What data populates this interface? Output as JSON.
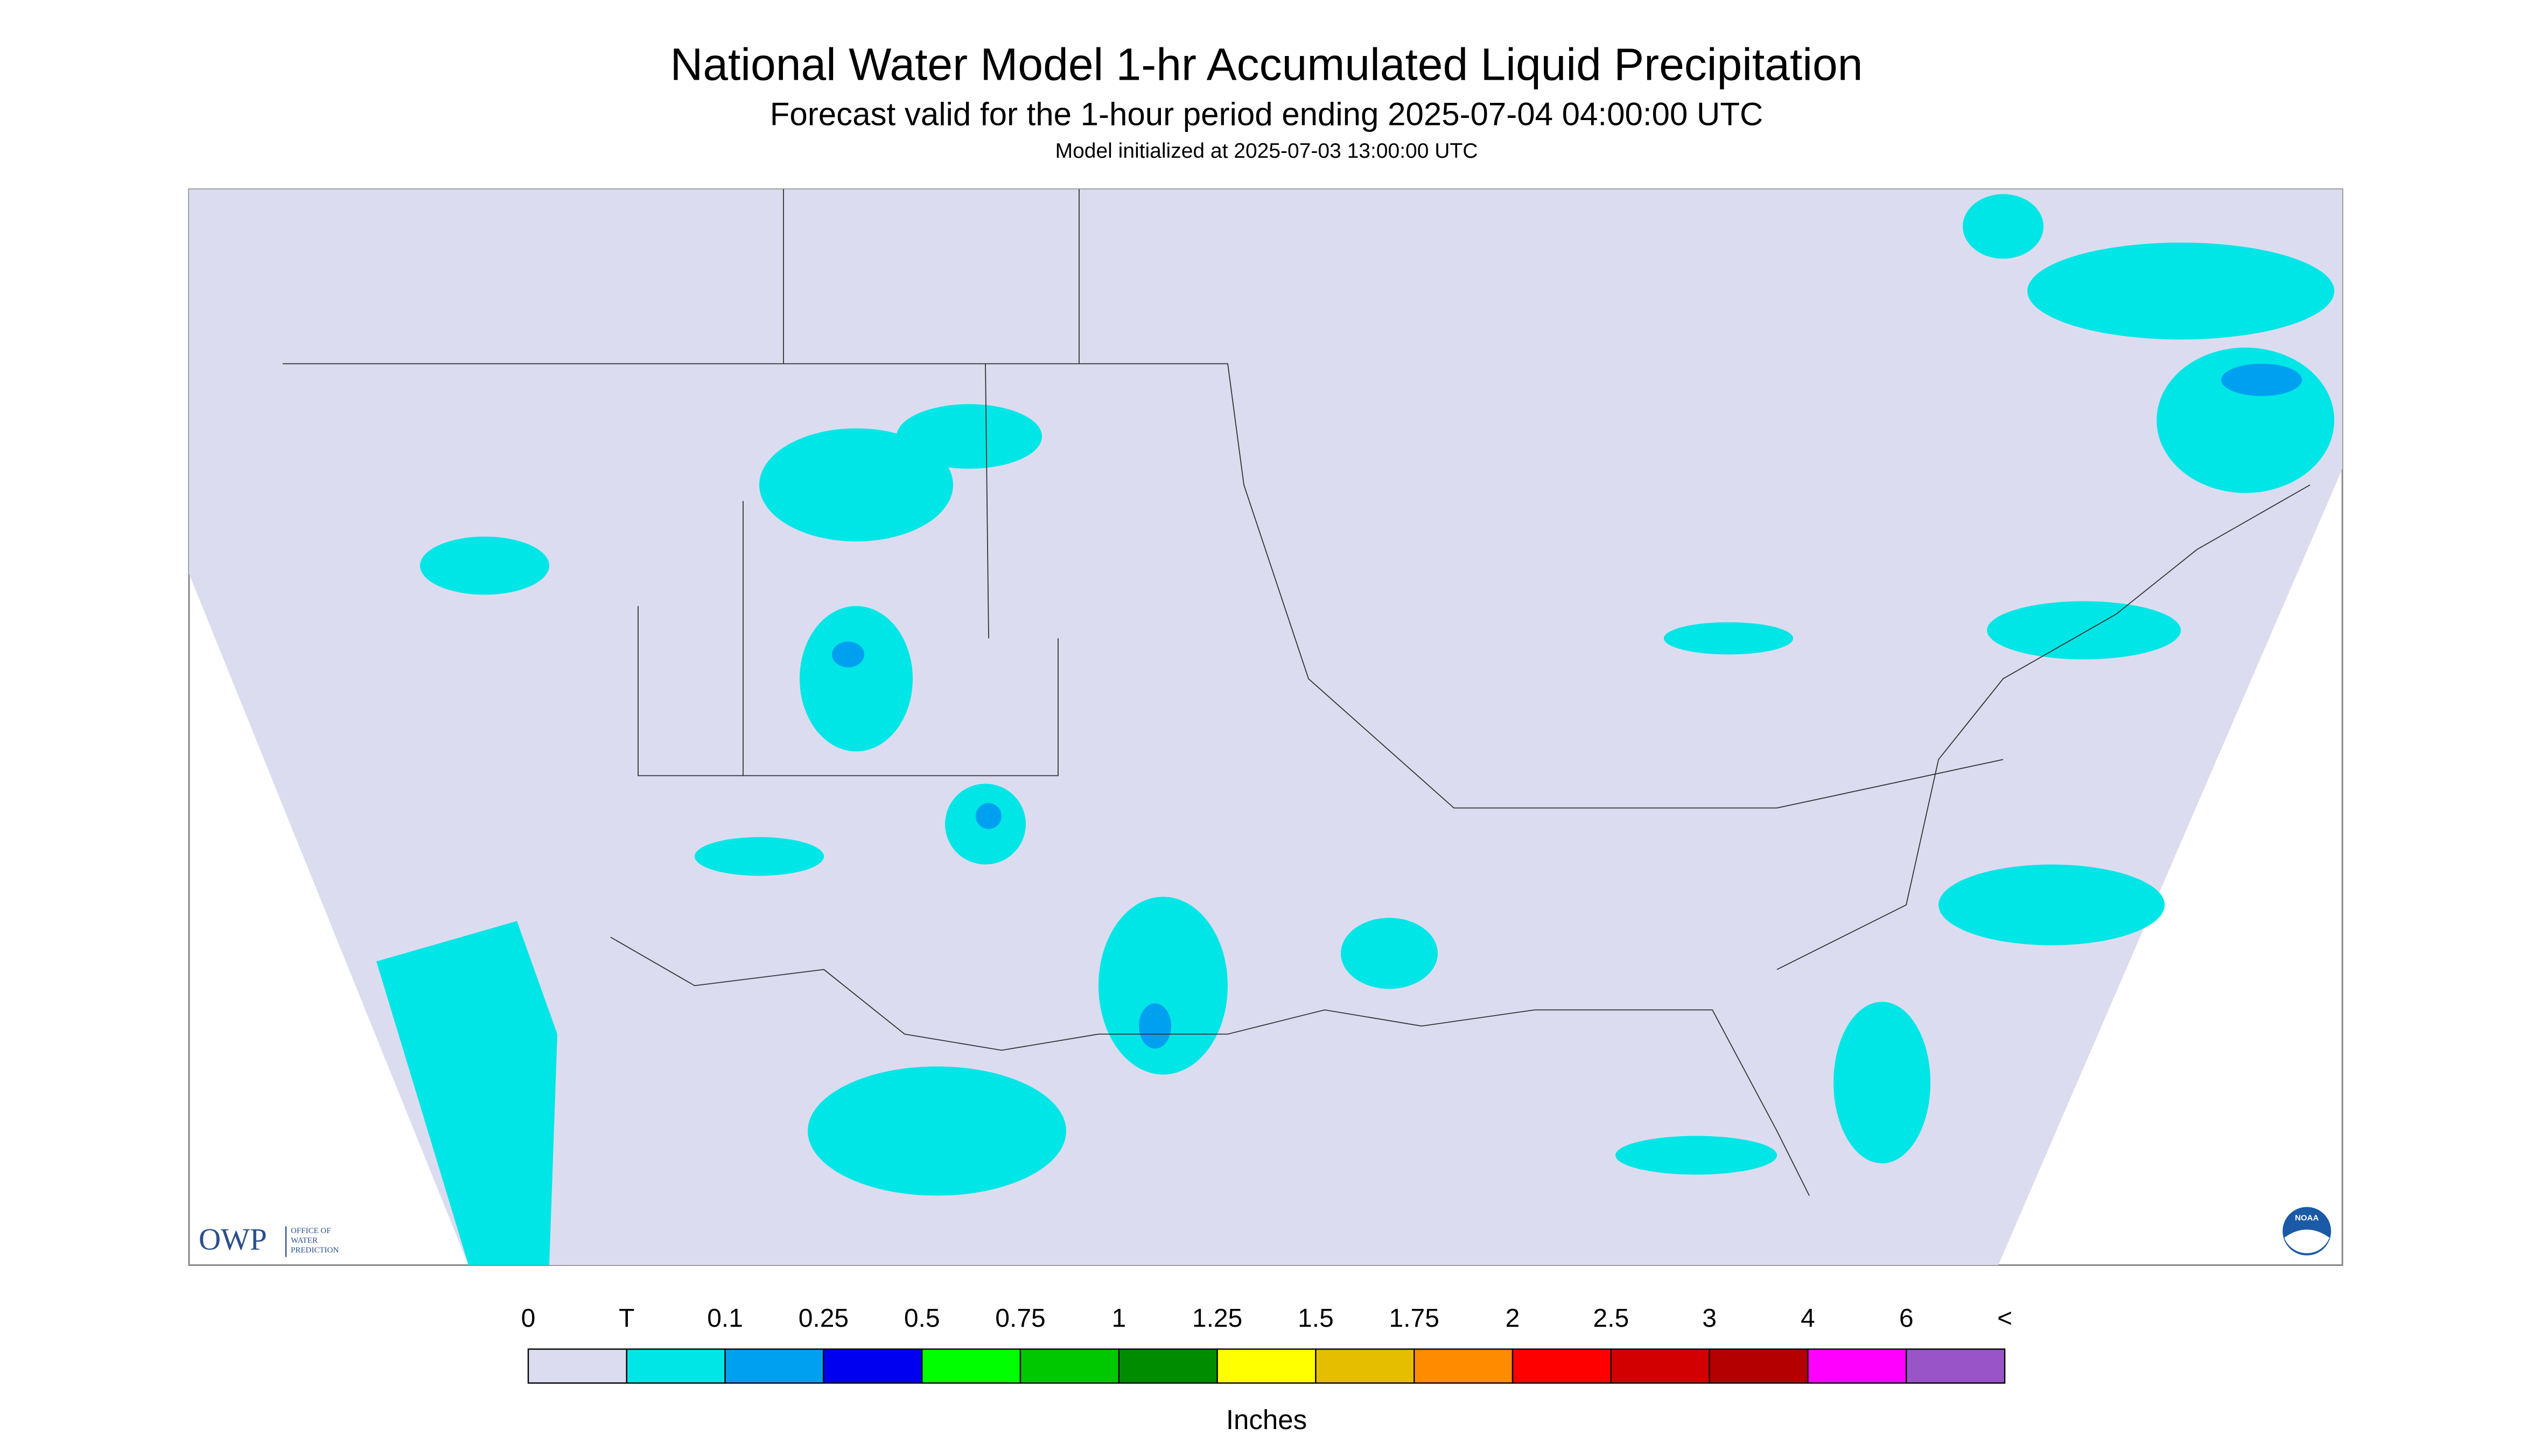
{
  "header": {
    "title": "National Water Model 1-hr Accumulated Liquid Precipitation",
    "subtitle": "Forecast valid for the 1-hour period ending 2025-07-04 04:00:00 UTC",
    "initialized": "Model initialized at 2025-07-03 13:00:00 UTC"
  },
  "legend": {
    "labels": [
      "0",
      "T",
      "0.1",
      "0.25",
      "0.5",
      "0.75",
      "1",
      "1.25",
      "1.5",
      "1.75",
      "2",
      "2.5",
      "3",
      "4",
      "6",
      "<"
    ],
    "colors": [
      "#dcdcf0",
      "#00e6e6",
      "#00a0f0",
      "#0000f0",
      "#00ff00",
      "#00c800",
      "#008c00",
      "#ffff00",
      "#e6be00",
      "#ff8c00",
      "#ff0000",
      "#d20000",
      "#b40000",
      "#ff00ff",
      "#9955c8"
    ],
    "unit": "Inches"
  },
  "logo": {
    "owp": "OWP",
    "owp_sub": [
      "OFFICE OF",
      "WATER",
      "PREDICTION"
    ],
    "noaa": "NOAA"
  }
}
